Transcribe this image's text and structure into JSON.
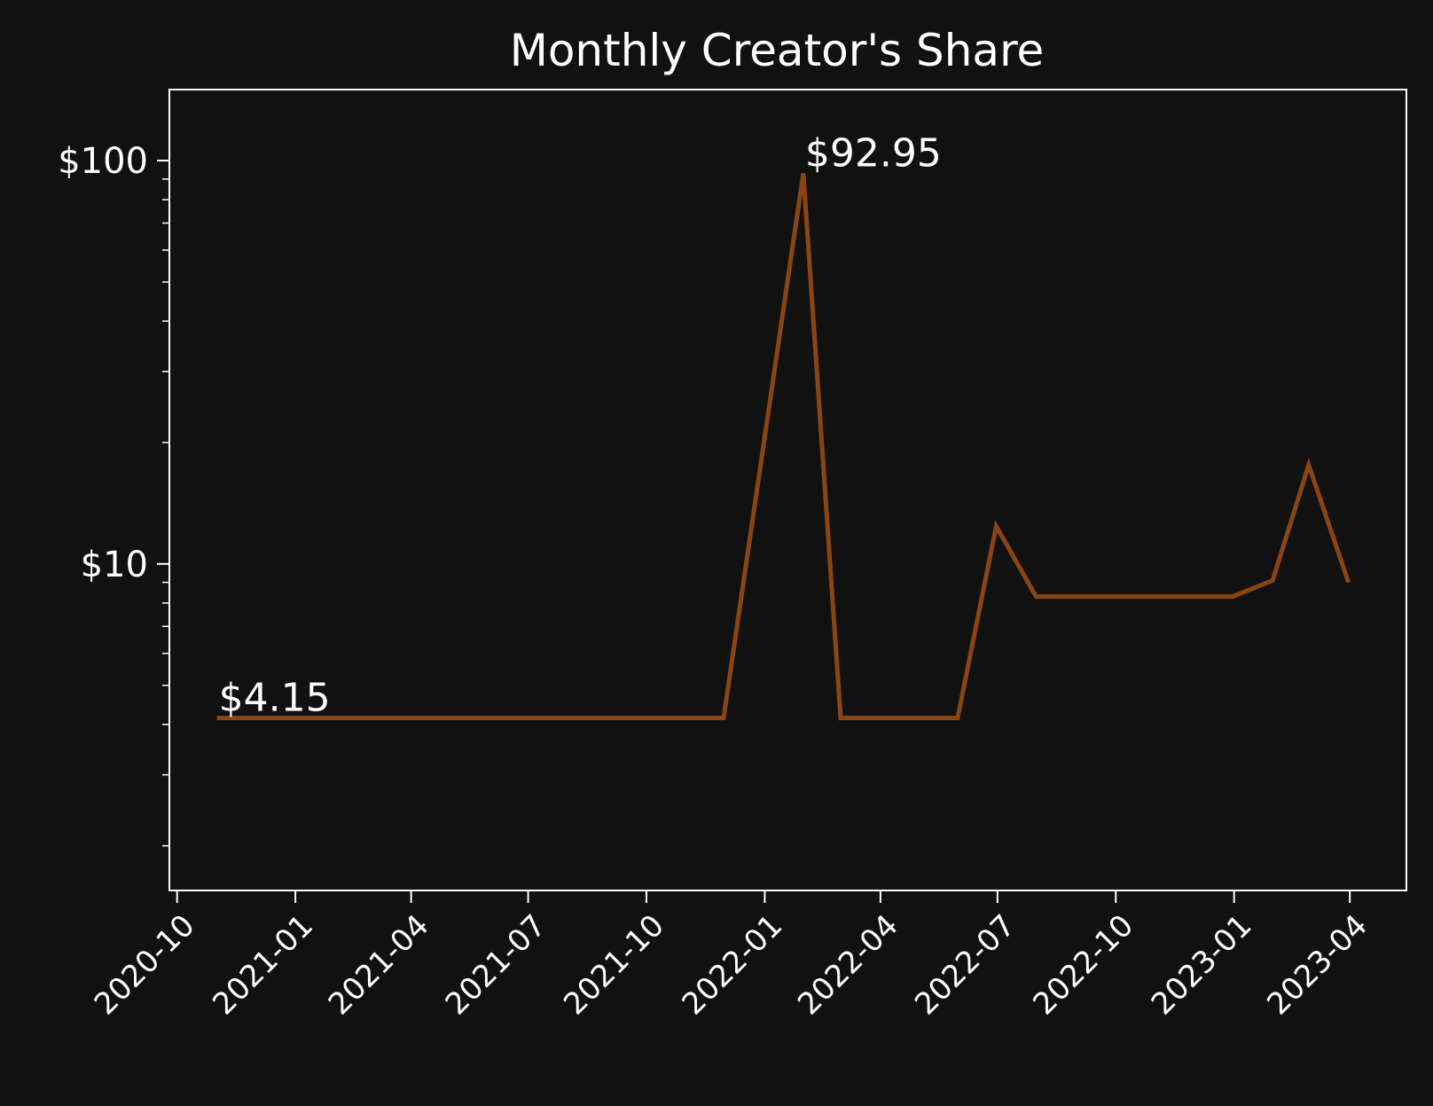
{
  "chart_data": {
    "type": "line",
    "title": "Monthly Creator's Share",
    "xlabel": "",
    "ylabel": "",
    "y_scale": "log",
    "ylim": [
      1.55,
      150
    ],
    "xlim": [
      "2020-09-25",
      "2023-05-15"
    ],
    "x_ticks": [
      "2020-10",
      "2021-01",
      "2021-04",
      "2021-07",
      "2021-10",
      "2022-01",
      "2022-04",
      "2022-07",
      "2022-10",
      "2023-01",
      "2023-04"
    ],
    "y_ticks": [
      {
        "value": 10,
        "label": "$10"
      },
      {
        "value": 100,
        "label": "$100"
      }
    ],
    "grid": false,
    "legend": "none",
    "colors": {
      "background": "#111111",
      "line": "#8B4513",
      "axes": "#ffffff",
      "text": "#ffffff"
    },
    "series": [
      {
        "x": [
          "2020-11-01",
          "2021-11-30",
          "2022-01-31",
          "2022-03-01",
          "2022-05-31",
          "2022-06-30",
          "2022-07-31",
          "2022-12-31",
          "2023-01-31",
          "2023-02-28",
          "2023-03-31"
        ],
        "values": [
          4.15,
          4.15,
          92.95,
          4.15,
          4.15,
          12.4,
          8.3,
          8.3,
          9.1,
          17.6,
          9.0
        ]
      }
    ],
    "annotations": [
      {
        "x": "2020-11-01",
        "y": 4.15,
        "text": "$4.15"
      },
      {
        "x": "2022-01-31",
        "y": 92.95,
        "text": "$92.95"
      }
    ]
  }
}
